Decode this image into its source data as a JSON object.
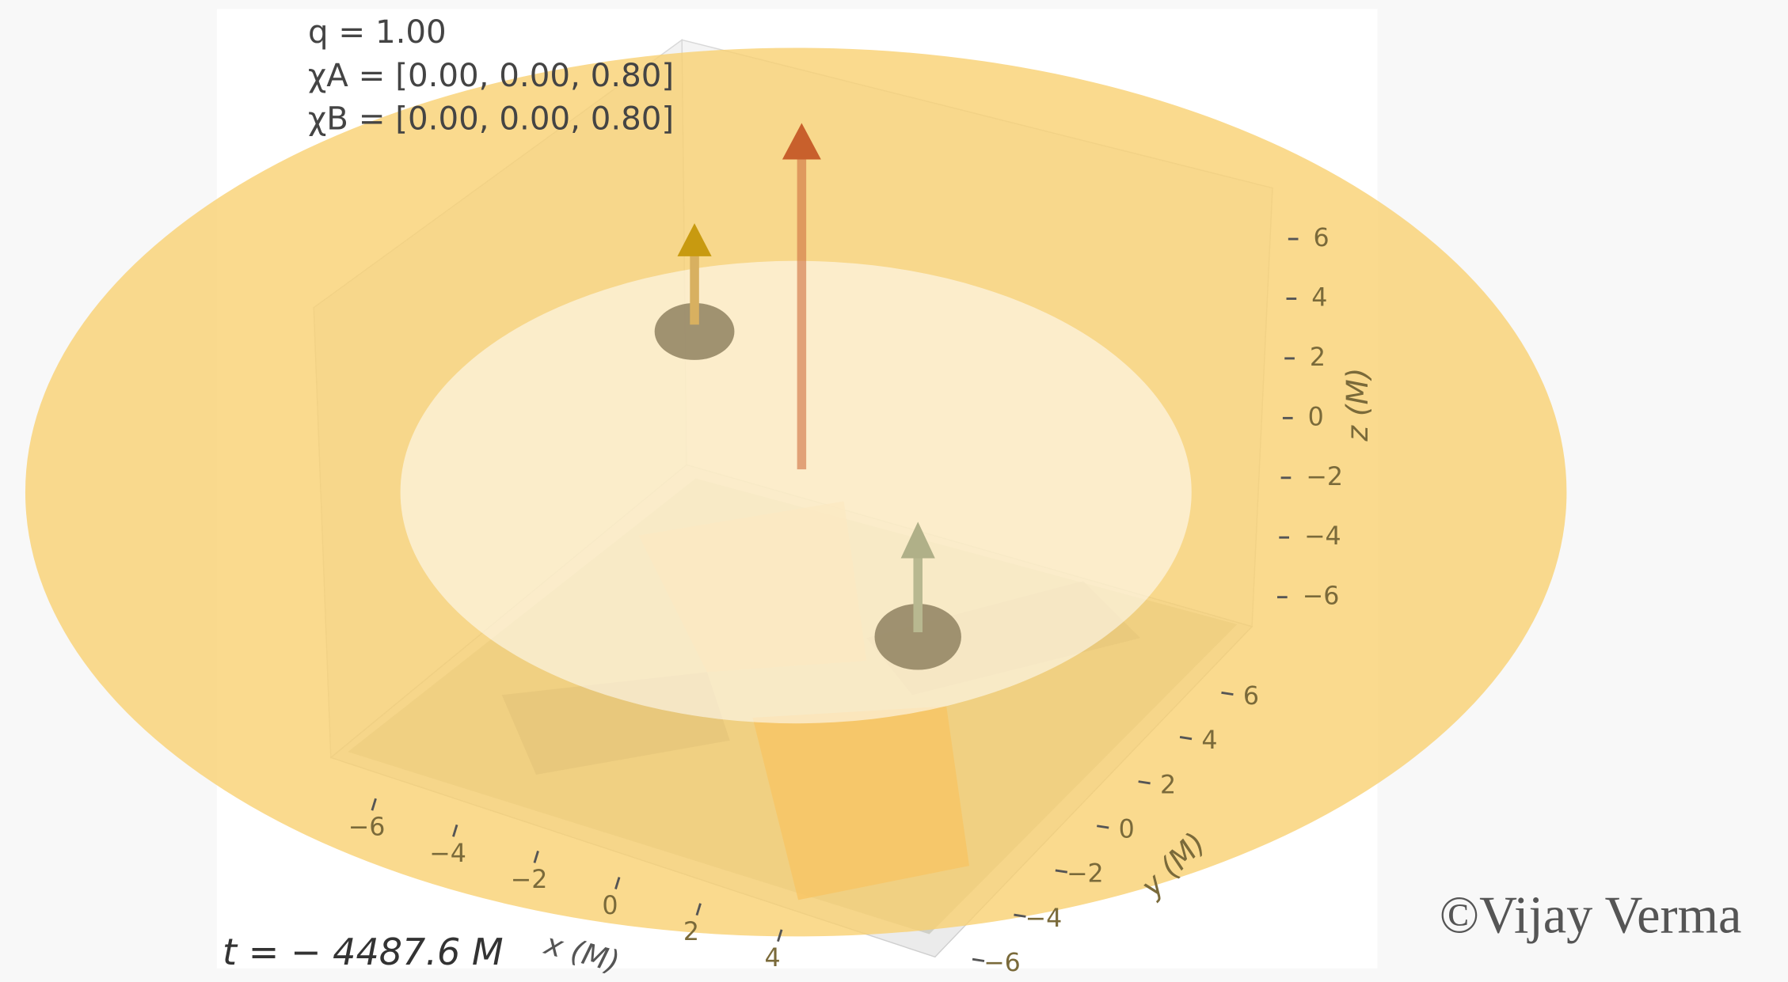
{
  "chart_data": {
    "type": "3d-orbit",
    "annotations": [
      "q = 1.00",
      "χA = [0.00, 0.00, 0.80]",
      "χB = [0.00, 0.00, 0.80]"
    ],
    "time_label": "t = − 4487.6 M",
    "xlabel": "x (M)",
    "ylabel": "y (M)",
    "zlabel": "z (M)",
    "watermark": "©Vijay Verma",
    "xticks": [
      {
        "value": -6,
        "label": "−6"
      },
      {
        "value": -4,
        "label": "−4"
      },
      {
        "value": -2,
        "label": "−2"
      },
      0,
      2,
      4
    ],
    "yticks": [
      {
        "value": -6,
        "label": "−6"
      },
      {
        "value": -4,
        "label": "−4"
      },
      {
        "value": -2,
        "label": "−2"
      },
      0,
      2,
      4,
      6
    ],
    "zticks": [
      {
        "value": -6,
        "label": "−6"
      },
      {
        "value": -4,
        "label": "−4"
      },
      {
        "value": -2,
        "label": "−2"
      },
      0,
      2,
      4,
      6
    ]
  }
}
